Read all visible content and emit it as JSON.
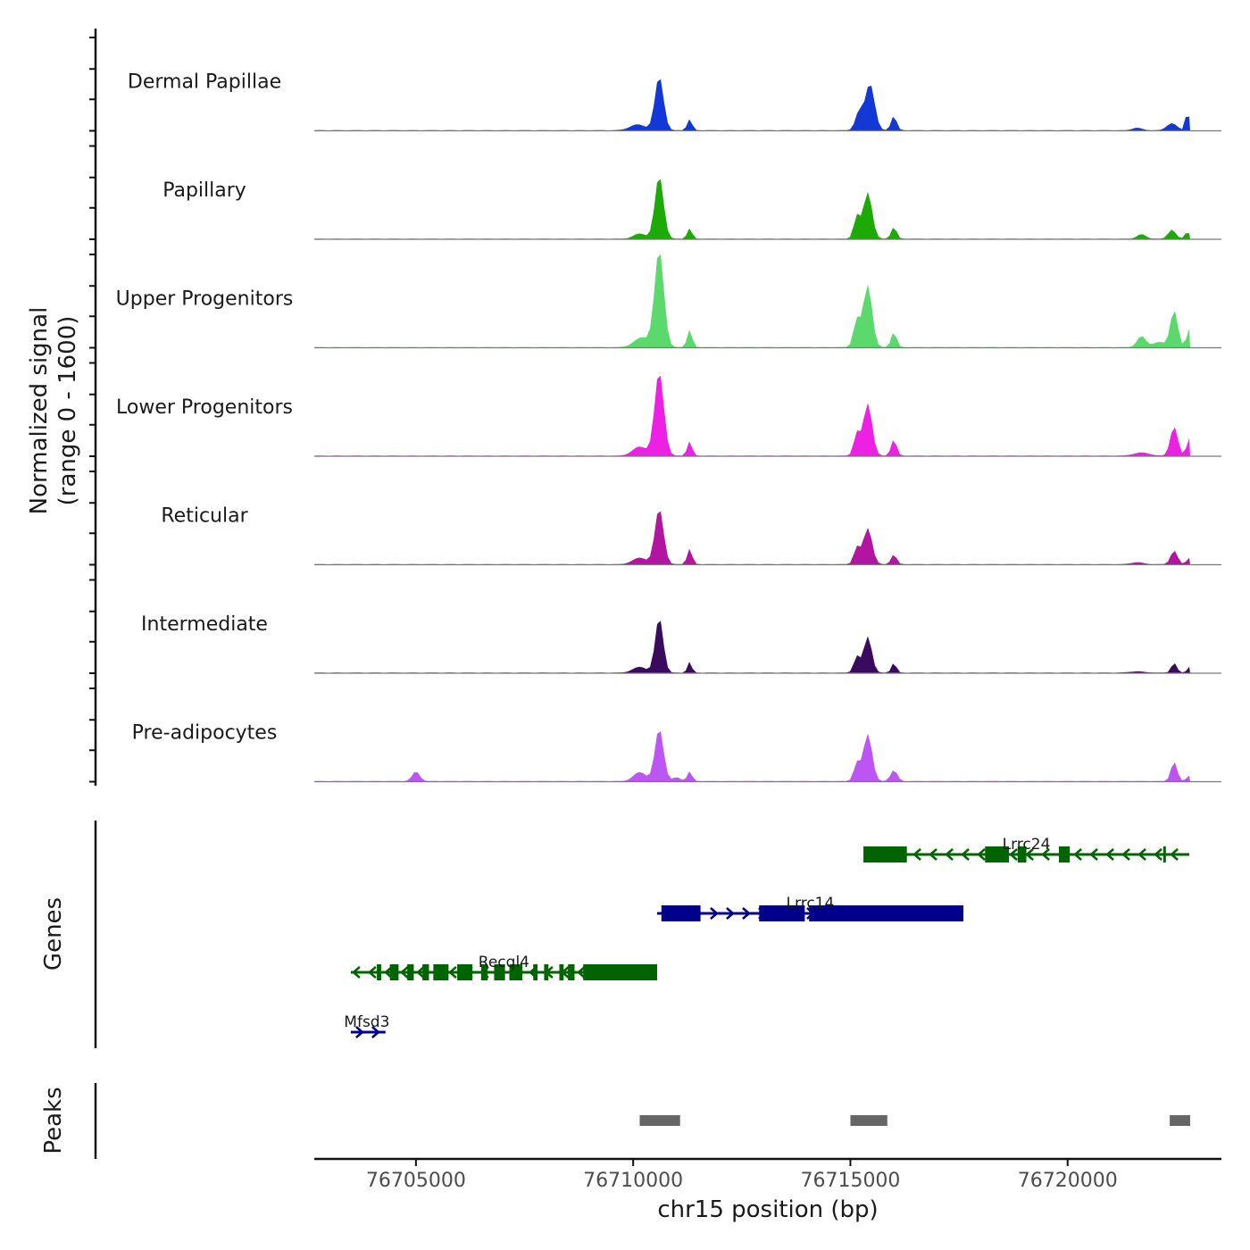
{
  "chart_data": {
    "type": "area",
    "title": "",
    "ylabel_line1": "Normalized signal",
    "ylabel_line2": "(range 0 - 1600)",
    "ylim": [
      0,
      1600
    ],
    "xlabel": "chr15 position (bp)",
    "xlim": [
      76702660,
      76723540
    ],
    "xticks": [
      76705000,
      76710000,
      76715000,
      76720000
    ],
    "xtick_labels": [
      "76705000",
      "76710000",
      "76715000",
      "76720000"
    ],
    "grid": false,
    "tracks": [
      {
        "name": "Dermal Papillae",
        "color": "#1238D6",
        "peaks": [
          [
            76710600,
            830,
            140
          ],
          [
            76711300,
            170,
            80
          ],
          [
            76710100,
            90,
            250
          ],
          [
            76715450,
            720,
            150
          ],
          [
            76715200,
            280,
            120
          ],
          [
            76716000,
            220,
            90
          ],
          [
            76722400,
            110,
            160
          ],
          [
            76722760,
            330,
            60
          ],
          [
            76721600,
            40,
            150
          ]
        ]
      },
      {
        "name": "Papillary",
        "color": "#1DAA07",
        "peaks": [
          [
            76710600,
            970,
            140
          ],
          [
            76711300,
            160,
            80
          ],
          [
            76710150,
            80,
            200
          ],
          [
            76715400,
            720,
            140
          ],
          [
            76715150,
            350,
            100
          ],
          [
            76716000,
            180,
            90
          ],
          [
            76722400,
            140,
            120
          ],
          [
            76722760,
            110,
            80
          ],
          [
            76721700,
            70,
            140
          ]
        ]
      },
      {
        "name": "Upper Progenitors",
        "color": "#5BD96C",
        "peaks": [
          [
            76710600,
            1490,
            150
          ],
          [
            76711300,
            270,
            80
          ],
          [
            76710200,
            150,
            250
          ],
          [
            76715400,
            960,
            140
          ],
          [
            76715150,
            420,
            110
          ],
          [
            76716000,
            230,
            90
          ],
          [
            76722450,
            570,
            120
          ],
          [
            76722780,
            320,
            60
          ],
          [
            76721700,
            170,
            140
          ],
          [
            76722100,
            80,
            200
          ]
        ]
      },
      {
        "name": "Lower Progenitors",
        "color": "#EC21E3",
        "peaks": [
          [
            76710600,
            1290,
            150
          ],
          [
            76711300,
            220,
            80
          ],
          [
            76710150,
            140,
            230
          ],
          [
            76715400,
            810,
            140
          ],
          [
            76715150,
            350,
            100
          ],
          [
            76716000,
            250,
            90
          ],
          [
            76722450,
            450,
            120
          ],
          [
            76722780,
            300,
            60
          ],
          [
            76721700,
            50,
            250
          ]
        ]
      },
      {
        "name": "Reticular",
        "color": "#B215A0",
        "peaks": [
          [
            76710600,
            860,
            140
          ],
          [
            76711300,
            240,
            80
          ],
          [
            76710150,
            100,
            230
          ],
          [
            76715400,
            560,
            140
          ],
          [
            76715150,
            260,
            100
          ],
          [
            76716000,
            150,
            90
          ],
          [
            76722450,
            210,
            110
          ],
          [
            76722780,
            110,
            60
          ],
          [
            76721600,
            30,
            200
          ]
        ]
      },
      {
        "name": "Intermediate",
        "color": "#3A0A5E",
        "peaks": [
          [
            76710600,
            850,
            130
          ],
          [
            76711300,
            170,
            70
          ],
          [
            76710150,
            90,
            220
          ],
          [
            76715400,
            560,
            130
          ],
          [
            76715150,
            250,
            100
          ],
          [
            76716000,
            150,
            80
          ],
          [
            76722450,
            150,
            90
          ],
          [
            76722780,
            110,
            50
          ],
          [
            76721600,
            20,
            250
          ]
        ]
      },
      {
        "name": "Pre-adipocytes",
        "color": "#BD55F2",
        "peaks": [
          [
            76710600,
            810,
            140
          ],
          [
            76711300,
            150,
            80
          ],
          [
            76710150,
            140,
            200
          ],
          [
            76715400,
            730,
            140
          ],
          [
            76715150,
            280,
            100
          ],
          [
            76716000,
            170,
            110
          ],
          [
            76705000,
            150,
            120
          ],
          [
            76722450,
            300,
            100
          ],
          [
            76722780,
            100,
            60
          ],
          [
            76711000,
            60,
            120
          ]
        ]
      }
    ],
    "genes": [
      {
        "name": "Lrrc24",
        "strand": "-",
        "color": "#006400",
        "row": 0,
        "start": 76715300,
        "end": 76722800,
        "exons": [
          [
            76715300,
            76716300
          ],
          [
            76718100,
            76718650
          ],
          [
            76718850,
            76719050
          ],
          [
            76719800,
            76720050
          ],
          [
            76722200,
            76722260
          ]
        ]
      },
      {
        "name": "Lrrc14",
        "strand": "+",
        "color": "#00008B",
        "row": 1,
        "start": 76710550,
        "end": 76717600,
        "exons": [
          [
            76710650,
            76711550
          ],
          [
            76712900,
            76713950
          ],
          [
            76714050,
            76717600
          ]
        ]
      },
      {
        "name": "Recql4",
        "strand": "-",
        "color": "#006400",
        "row": 2,
        "start": 76703500,
        "end": 76710550,
        "exons": [
          [
            76704100,
            76704200
          ],
          [
            76704400,
            76704600
          ],
          [
            76704800,
            76704950
          ],
          [
            76705150,
            76705300
          ],
          [
            76705400,
            76705750
          ],
          [
            76705950,
            76706300
          ],
          [
            76706500,
            76706650
          ],
          [
            76706800,
            76707050
          ],
          [
            76707150,
            76707450
          ],
          [
            76707700,
            76707800
          ],
          [
            76707950,
            76708050
          ],
          [
            76708300,
            76708400
          ],
          [
            76708500,
            76708650
          ],
          [
            76708850,
            76909000
          ],
          [
            76709000,
            76709700
          ],
          [
            76709900,
            76710000
          ],
          [
            76710200,
            76710300
          ],
          [
            76710400,
            76710550
          ]
        ]
      },
      {
        "name": "Mfsd3",
        "strand": "+",
        "color": "#00008B",
        "row": 3,
        "start": 76703500,
        "end": 76704300,
        "exons": []
      }
    ],
    "peaks": [
      [
        76710150,
        76711080
      ],
      [
        76715000,
        76715850
      ],
      [
        76722350,
        76722820
      ]
    ],
    "peak_color": "#666666",
    "panel_labels": {
      "genes": "Genes",
      "peaks": "Peaks"
    }
  }
}
